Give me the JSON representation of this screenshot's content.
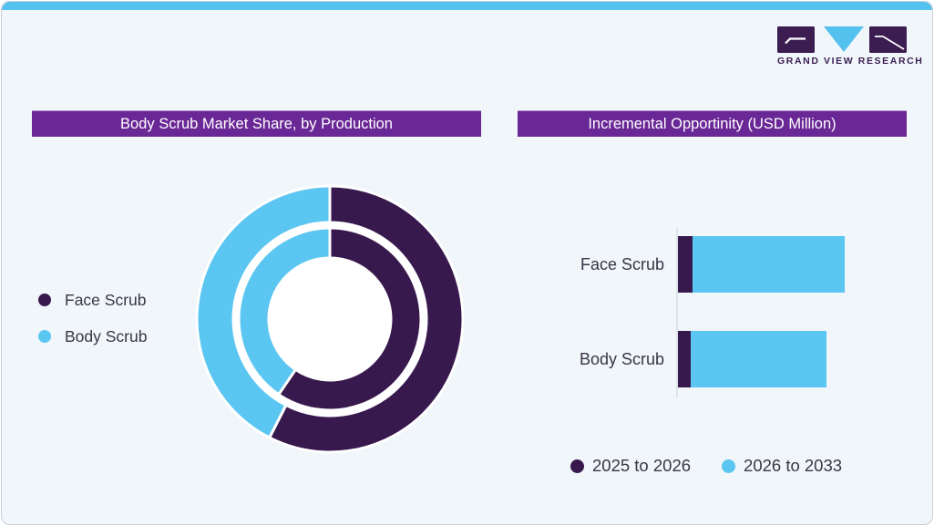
{
  "brand": {
    "name": "GRAND VIEW RESEARCH",
    "logo_letters": [
      "G",
      "V",
      "R"
    ],
    "logo_purple": "#3b1d52",
    "logo_blue": "#55c1ee"
  },
  "page": {
    "background": "#f0f6fa",
    "top_strip_color": "#55c1ee",
    "banner_color": "#6a2796",
    "series_purple": "#38194e",
    "series_blue": "#5bc6f1"
  },
  "left_panel": {
    "banner": "Body Scrub Market Share, by Production",
    "legend": [
      {
        "label": "Face Scrub",
        "color": "#38194e"
      },
      {
        "label": "Body Scrub",
        "color": "#5bc6f1"
      }
    ]
  },
  "right_panel": {
    "banner": "Incremental Opportinity (USD Million)",
    "categories": [
      "Face Scrub",
      "Body Scrub"
    ]
  },
  "chart_data": [
    {
      "type": "pie",
      "variant": "two-ring donut",
      "title": "Body Scrub Market Share, by Production",
      "labels": [
        "Face Scrub",
        "Body Scrub"
      ],
      "colors": [
        "#38194e",
        "#5bc6f1"
      ],
      "start_angle_deg": 0,
      "direction": "clockwise",
      "rings": [
        {
          "name": "outer",
          "values_pct": [
            57.5,
            42.5
          ]
        },
        {
          "name": "inner",
          "values_pct": [
            59.5,
            40.5
          ]
        }
      ],
      "legend_position": "left",
      "note": "No numeric data labels shown; ring shares estimated from arc angles."
    },
    {
      "type": "bar",
      "orientation": "horizontal",
      "stacked": true,
      "title": "Incremental Opportinity (USD Million)",
      "categories": [
        "Face Scrub",
        "Body Scrub"
      ],
      "series": [
        {
          "name": "2025 to 2026",
          "color": "#38194e",
          "values": [
            16,
            14
          ]
        },
        {
          "name": "2026 to 2033",
          "color": "#5bc6f1",
          "values": [
            167,
            149
          ]
        }
      ],
      "x_axis": {
        "ticks_visible": false,
        "range_units": [
          0,
          200
        ]
      },
      "legend_position": "bottom",
      "note": "No axis tick values shown; values are relative units estimated from bar lengths."
    }
  ]
}
